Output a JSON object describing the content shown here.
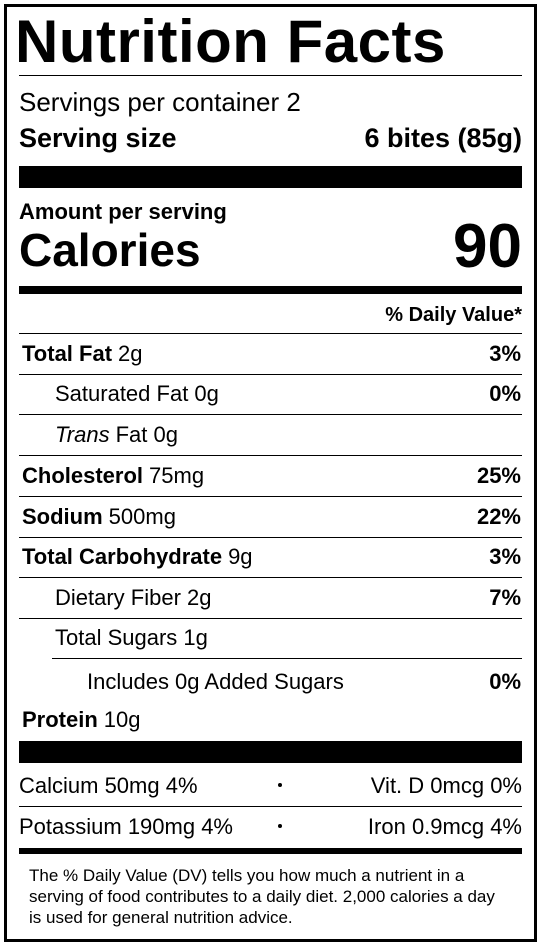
{
  "title": "Nutrition Facts",
  "servings_per_container": "Servings per container 2",
  "serving_size": {
    "label": "Serving size",
    "value": "6 bites (85g)"
  },
  "amount_per_serving": "Amount per serving",
  "calories": {
    "label": "Calories",
    "value": "90"
  },
  "daily_value_header": "% Daily Value*",
  "nutrients": [
    {
      "name": "Total Fat",
      "amount": "2g",
      "dv": "3%"
    },
    {
      "name": "Saturated Fat 0g",
      "dv": "0%"
    },
    {
      "name_italic": "Trans",
      "name": "Fat 0g"
    },
    {
      "name": "Cholesterol",
      "amount": "75mg",
      "dv": "25%"
    },
    {
      "name": "Sodium",
      "amount": "500mg",
      "dv": "22%"
    },
    {
      "name": "Total Carbohydrate",
      "amount": "9g",
      "dv": "3%"
    },
    {
      "name": "Dietary Fiber 2g",
      "dv": "7%"
    },
    {
      "name": "Total Sugars 1g"
    },
    {
      "name": "Includes 0g Added Sugars",
      "dv": "0%"
    },
    {
      "name": "Protein",
      "amount": "10g"
    }
  ],
  "vitamins": [
    [
      "Calcium 50mg 4%",
      "Vit. D 0mcg 0%"
    ],
    [
      "Potassium 190mg 4%",
      "Iron 0.9mcg 4%"
    ]
  ],
  "footnote": "The % Daily Value (DV) tells you how much a nutrient in a serving of food contributes to a daily diet. 2,000 calories a day is used for general nutrition advice."
}
